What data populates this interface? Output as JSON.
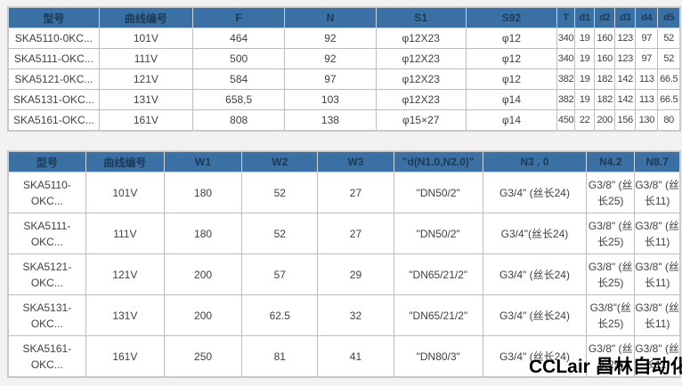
{
  "tables": [
    {
      "name": "dimensions-table",
      "columns": [
        "型号",
        "曲线编号",
        "F",
        "N",
        "S1",
        "S92",
        "T",
        "d1",
        "d2",
        "d3",
        "d4",
        "d5"
      ],
      "rows": [
        [
          "SKA5110-0KC...",
          "101V",
          "464",
          "92",
          "φ12X23",
          "φ12",
          "340",
          "19",
          "160",
          "123",
          "97",
          "52"
        ],
        [
          "SKA5111-OKC...",
          "111V",
          "500",
          "92",
          "φ12X23",
          "φ12",
          "340",
          "19",
          "160",
          "123",
          "97",
          "52"
        ],
        [
          "SKA5121-0KC...",
          "121V",
          "584",
          "97",
          "φ12X23",
          "φ12",
          "382",
          "19",
          "182",
          "142",
          "113",
          "66.5"
        ],
        [
          "SKA5131-OKC...",
          "131V",
          "658,5",
          "103",
          "φ12X23",
          "φ14",
          "382",
          "19",
          "182",
          "142",
          "113",
          "66.5"
        ],
        [
          "SKA5161-OKC...",
          "161V",
          "808",
          "138",
          "φ15×27",
          "φ14",
          "450",
          "22",
          "200",
          "156",
          "130",
          "80"
        ]
      ]
    },
    {
      "name": "connection-sizes-table",
      "columns": [
        "型号",
        "曲线编号",
        "W1",
        "W2",
        "W3",
        "\"d(N1.0,N2.0)\"",
        "N3 . 0",
        "N4.2",
        "N8.7"
      ],
      "rows": [
        [
          "SKA5110-OKC...",
          "101V",
          "180",
          "52",
          "27",
          "\"DN50/2\"",
          "G3/4\" (丝长24)",
          "G3/8\" (丝长25)",
          "G3/8\" (丝长11)"
        ],
        [
          "SKA5111-OKC...",
          "111V",
          "180",
          "52",
          "27",
          "\"DN50/2\"",
          "G3/4\"(丝长24)",
          "G3/8\" (丝长25)",
          "G3/8\" (丝长11)"
        ],
        [
          "SKA5121-OKC...",
          "121V",
          "200",
          "57",
          "29",
          "\"DN65/21/2\"",
          "G3/4\" (丝长24)",
          "G3/8\" (丝长25)",
          "G3/8\" (丝长11)"
        ],
        [
          "SKA5131-OKC...",
          "131V",
          "200",
          "62.5",
          "32",
          "\"DN65/21/2\"",
          "G3/4\" (丝长24)",
          "G3/8\"(丝长25)",
          "G3/8\" (丝长11)"
        ],
        [
          "SKA5161-OKC...",
          "161V",
          "250",
          "81",
          "41",
          "\"DN80/3\"",
          "G3/4\" (丝长24)",
          "G3/8\" (丝长25)",
          "G3/8\" (丝长11)"
        ]
      ]
    }
  ],
  "watermark": {
    "text": "CCLair 昌林自动化"
  },
  "colors": {
    "header_bg": "#3a70a3",
    "header_text": "#1d3a55",
    "cell_text": "#404040",
    "cell_border": "#bdbdbd",
    "outer_border": "#c9c9c9",
    "page_bg": "#f2f2f2",
    "watermark_text": "#000000"
  }
}
